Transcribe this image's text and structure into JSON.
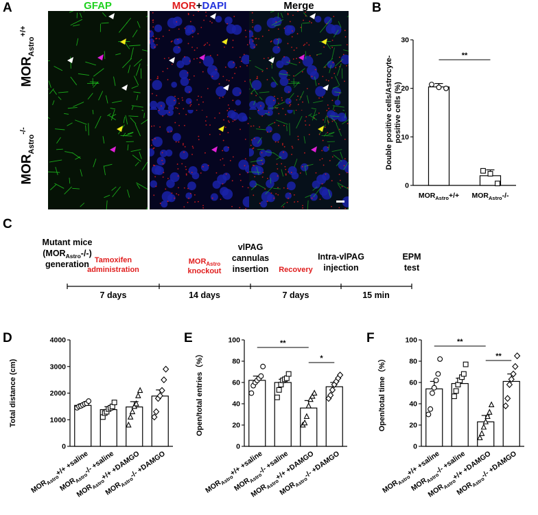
{
  "panels": {
    "A": "A",
    "B": "B",
    "C": "C",
    "D": "D",
    "E": "E",
    "F": "F"
  },
  "panel_a": {
    "col_titles": {
      "gfap": "GFAP",
      "mor": "MOR",
      "plus": "+",
      "dapi": "DAPI",
      "merge": "Merge"
    },
    "rows": [
      {
        "base": "MOR",
        "sub": "Astro",
        "sup": "+/+"
      },
      {
        "base": "MOR",
        "sub": "Astro",
        "sup": "-/-"
      }
    ],
    "colors": {
      "gfap": "#1fd11f",
      "mor": "#e01d1d",
      "dapi": "#2233dd",
      "arrow_white": "#ffffff",
      "arrow_yellow": "#f2ea18",
      "arrow_magenta": "#e020d8"
    }
  },
  "timeline": {
    "events": [
      {
        "lines": [
          "Mutant mice",
          "(MOR",
          "generation"
        ],
        "sub": "Astro",
        "sup": "-/-)"
      },
      {
        "lines": [
          "vlPAG",
          "cannulas",
          "insertion"
        ]
      },
      {
        "lines": [
          "Intra-vlPAG",
          "injection"
        ]
      },
      {
        "lines": [
          "EPM",
          "test"
        ]
      }
    ],
    "red_labels": [
      {
        "lines": [
          "Tamoxifen",
          "administration"
        ]
      },
      {
        "lines": [
          "MOR",
          "knockout"
        ],
        "sub": "Astro"
      },
      {
        "lines": [
          "Recovery"
        ]
      }
    ],
    "durations": [
      "7 days",
      "14 days",
      "7 days",
      "15 min"
    ]
  },
  "chart_data": [
    {
      "id": "B",
      "type": "bar",
      "categories": [
        "MORAstro+/+",
        "MORAstro-/-"
      ],
      "category_parts": [
        {
          "base": "MOR",
          "sub": "Astro",
          "sup": "+/+"
        },
        {
          "base": "MOR",
          "sub": "Astro",
          "sup": "-/-"
        }
      ],
      "values": [
        20.3,
        2.0
      ],
      "errors": [
        0.7,
        1.2
      ],
      "points": [
        [
          20.8,
          20.2,
          20.0
        ],
        [
          3.0,
          2.4,
          0.4
        ]
      ],
      "markers": [
        "circle",
        "square"
      ],
      "ylabel": "Double positive cells/Astrocyte-positive cells (%)",
      "ylabel_lines": [
        "Double positive cells/Astrocyte-",
        "positive cells (%)"
      ],
      "ylim": [
        0,
        30
      ],
      "yticks": [
        0,
        10,
        20,
        30
      ],
      "significance": [
        {
          "from": 0,
          "to": 1,
          "label": "**"
        }
      ]
    },
    {
      "id": "D",
      "type": "bar",
      "categories": [
        "MORAstro+/+ +saline",
        "MORAstro-/- +saline",
        "MORAstro+/+ +DAMGO",
        "MORAstro-/- +DAMGO"
      ],
      "category_parts": [
        {
          "base": "MOR",
          "sub": "Astro",
          "sup": "+/+",
          "rest": " +saline"
        },
        {
          "base": "MOR",
          "sub": "Astro",
          "sup": "-/-",
          "rest": " +saline"
        },
        {
          "base": "MOR",
          "sub": "Astro",
          "sup": "+/+",
          "rest": " +DAMGO"
        },
        {
          "base": "MOR",
          "sub": "Astro",
          "sup": "-/-",
          "rest": " +DAMGO"
        }
      ],
      "values": [
        1540,
        1380,
        1480,
        1890
      ],
      "errors": [
        60,
        110,
        200,
        230
      ],
      "points": [
        [
          1450,
          1500,
          1520,
          1560,
          1600,
          1620,
          1700
        ],
        [
          1100,
          1250,
          1300,
          1400,
          1450,
          1500,
          1650
        ],
        [
          800,
          1100,
          1300,
          1500,
          1600,
          1900,
          2100
        ],
        [
          1100,
          1300,
          1800,
          1900,
          2100,
          2500,
          2900
        ]
      ],
      "markers": [
        "circle",
        "square",
        "triangle",
        "diamond"
      ],
      "ylabel": "Total distance (cm)",
      "ylim": [
        0,
        4000
      ],
      "yticks": [
        0,
        1000,
        2000,
        3000,
        4000
      ],
      "significance": []
    },
    {
      "id": "E",
      "type": "bar",
      "categories": [
        "MORAstro+/+ +saline",
        "MORAstro-/- +saline",
        "MORAstro+/+ +DAMGO",
        "MORAstro-/- +DAMGO"
      ],
      "category_parts": [
        {
          "base": "MOR",
          "sub": "Astro",
          "sup": "+/+",
          "rest": " +saline"
        },
        {
          "base": "MOR",
          "sub": "Astro",
          "sup": "-/-",
          "rest": " +saline"
        },
        {
          "base": "MOR",
          "sub": "Astro",
          "sup": "+/+",
          "rest": " +DAMGO"
        },
        {
          "base": "MOR",
          "sub": "Astro",
          "sup": "-/-",
          "rest": " +DAMGO"
        }
      ],
      "values": [
        62,
        60,
        36,
        56
      ],
      "errors": [
        4,
        3,
        7,
        4
      ],
      "points": [
        [
          50,
          57,
          60,
          62,
          64,
          66,
          75
        ],
        [
          46,
          53,
          58,
          62,
          63,
          64,
          68
        ],
        [
          20,
          22,
          28,
          38,
          44,
          47,
          50
        ],
        [
          45,
          48,
          53,
          58,
          61,
          64,
          67
        ]
      ],
      "markers": [
        "circle",
        "square",
        "triangle",
        "diamond"
      ],
      "ylabel": "Open/total entries（%）",
      "ylim": [
        0,
        100
      ],
      "yticks": [
        0,
        20,
        40,
        60,
        80,
        100
      ],
      "significance": [
        {
          "from": 0,
          "to": 2,
          "label": "**"
        },
        {
          "from": 2,
          "to": 3,
          "label": "*"
        }
      ]
    },
    {
      "id": "F",
      "type": "bar",
      "categories": [
        "MORAstro+/+ +saline",
        "MORAstro-/- +saline",
        "MORAstro+/+ +DAMGO",
        "MORAstro-/- +DAMGO"
      ],
      "category_parts": [
        {
          "base": "MOR",
          "sub": "Astro",
          "sup": "+/+",
          "rest": " +saline"
        },
        {
          "base": "MOR",
          "sub": "Astro",
          "sup": "-/-",
          "rest": " +saline"
        },
        {
          "base": "MOR",
          "sub": "Astro",
          "sup": "+/+",
          "rest": " +DAMGO"
        },
        {
          "base": "MOR",
          "sub": "Astro",
          "sup": "-/-",
          "rest": " +DAMGO"
        }
      ],
      "values": [
        54,
        59,
        23,
        61
      ],
      "errors": [
        7,
        5,
        6,
        7
      ],
      "points": [
        [
          30,
          35,
          50,
          55,
          62,
          68,
          82
        ],
        [
          47,
          52,
          58,
          62,
          65,
          68,
          77
        ],
        [
          8,
          12,
          18,
          23,
          28,
          32,
          39
        ],
        [
          38,
          45,
          58,
          63,
          68,
          75,
          85
        ]
      ],
      "markers": [
        "circle",
        "square",
        "triangle",
        "diamond"
      ],
      "ylabel": "Open/total time（%）",
      "ylim": [
        0,
        100
      ],
      "yticks": [
        0,
        20,
        40,
        60,
        80,
        100
      ],
      "significance": [
        {
          "from": 0,
          "to": 2,
          "label": "**"
        },
        {
          "from": 2,
          "to": 3,
          "label": "**"
        }
      ]
    }
  ]
}
